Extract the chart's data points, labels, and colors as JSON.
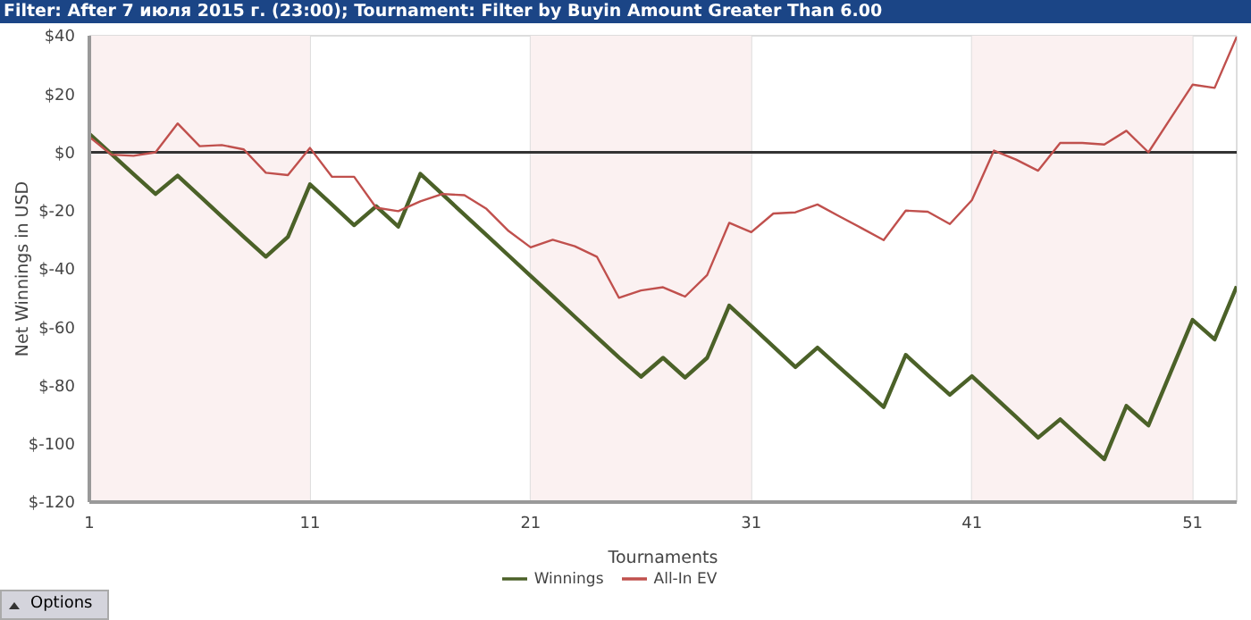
{
  "chart_data": {
    "type": "line",
    "title": "Filter: After 7 июля 2015 г. (23:00); Tournament: Filter by Buyin Amount Greater Than 6.00",
    "xlabel": "Tournaments",
    "ylabel": "Net Winnings in USD",
    "x": [
      1,
      2,
      3,
      4,
      5,
      6,
      7,
      8,
      9,
      10,
      11,
      12,
      13,
      14,
      15,
      16,
      17,
      18,
      19,
      20,
      21,
      22,
      23,
      24,
      25,
      26,
      27,
      28,
      29,
      30,
      31,
      32,
      33,
      34,
      35,
      36,
      37,
      38,
      39,
      40,
      41,
      42,
      43,
      44,
      45,
      46,
      47,
      48,
      49,
      50,
      51,
      52,
      53
    ],
    "series": [
      {
        "name": "Winnings",
        "color": "#4b6128",
        "values": [
          6.3,
          -0.6,
          -7.5,
          -14.3,
          -8,
          -15,
          -22,
          -29,
          -35.8,
          -29,
          -11,
          -18,
          -25,
          -18.5,
          -25.5,
          -7.4,
          -14.4,
          -21.4,
          -28.4,
          -35.4,
          -42.4,
          -49.4,
          -56.4,
          -63.4,
          -70.4,
          -77,
          -70.5,
          -77.3,
          -70.5,
          -52.6,
          -59.6,
          -66.6,
          -73.7,
          -67,
          -73.8,
          -80.6,
          -87.4,
          -69.5,
          -76.4,
          -83.2,
          -76.8,
          -83.8,
          -90.8,
          -97.9,
          -91.6,
          -98.5,
          -105.3,
          -87,
          -93.7,
          -75.6,
          -57.5,
          -64.2,
          -46
        ]
      },
      {
        "name": "All-In EV",
        "color": "#c0504d",
        "values": [
          5.3,
          -0.8,
          -1.2,
          0,
          9.9,
          2.1,
          2.5,
          1,
          -7,
          -7.8,
          1.5,
          -8.4,
          -8.4,
          -19,
          -20.2,
          -16.8,
          -14.3,
          -14.7,
          -19.4,
          -27,
          -32.6,
          -30,
          -32.2,
          -35.8,
          -49.9,
          -47.4,
          -46.3,
          -49.5,
          -42.1,
          -24.2,
          -27.4,
          -21,
          -20.6,
          -17.9,
          -22,
          -26,
          -30.1,
          -20,
          -20.4,
          -24.6,
          -16.4,
          0.6,
          -2.5,
          -6.3,
          3.2,
          3.2,
          2.7,
          7.4,
          0,
          11.6,
          23.2,
          22.1,
          39.6
        ]
      }
    ],
    "xlim": [
      1,
      53
    ],
    "xticks": [
      1,
      11,
      21,
      31,
      41,
      51
    ],
    "ylim": [
      -120,
      40
    ],
    "yticks": [
      {
        "value": 40,
        "label": "$40"
      },
      {
        "value": 20,
        "label": "$20"
      },
      {
        "value": 0,
        "label": "$0"
      },
      {
        "value": -20,
        "label": "$-20"
      },
      {
        "value": -40,
        "label": "$-40"
      },
      {
        "value": -60,
        "label": "$-60"
      },
      {
        "value": -80,
        "label": "$-80"
      },
      {
        "value": -100,
        "label": "$-100"
      },
      {
        "value": -120,
        "label": "$-120"
      }
    ],
    "ref_lines": [
      {
        "axis": "y",
        "value": 0,
        "color": "#333333"
      }
    ],
    "bands": [
      {
        "axis": "x",
        "from": 1,
        "to": 11,
        "color": "#fbf1f1"
      },
      {
        "axis": "x",
        "from": 21,
        "to": 31,
        "color": "#fbf1f1"
      },
      {
        "axis": "x",
        "from": 41,
        "to": 51,
        "color": "#fbf1f1"
      }
    ],
    "grid": true,
    "legend": "bottom",
    "marker": "none",
    "line_style": "solid",
    "annotations": [
      "Options"
    ]
  }
}
